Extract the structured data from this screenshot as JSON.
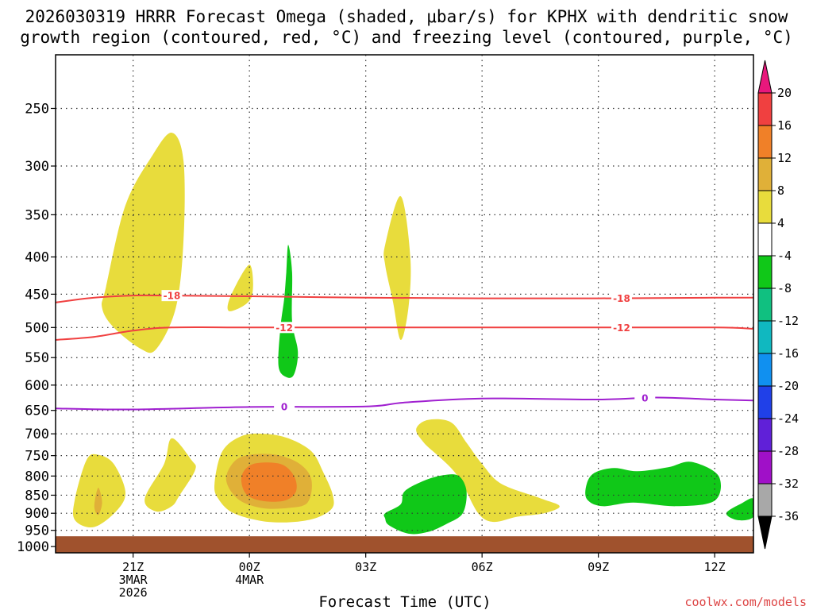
{
  "chart_data": {
    "type": "time-height",
    "title_line1": "2026030319 HRRR Forecast Omega (shaded, μbar/s) for KPHX with dendritic snow",
    "title_line2": "growth region (contoured, red, °C) and freezing level (contoured, purple, °C)",
    "xlabel": "Forecast Time (UTC)",
    "ylabel": "",
    "x_range_hours": [
      -2,
      16
    ],
    "y_ticks": [
      250,
      300,
      350,
      400,
      450,
      500,
      550,
      600,
      650,
      700,
      750,
      800,
      850,
      900,
      950,
      1000
    ],
    "x_ticks": [
      {
        "hour": 0,
        "lines": [
          "21Z",
          "3MAR",
          "2026"
        ]
      },
      {
        "hour": 3,
        "lines": [
          "00Z",
          "4MAR"
        ]
      },
      {
        "hour": 6,
        "lines": [
          "03Z"
        ]
      },
      {
        "hour": 9,
        "lines": [
          "06Z"
        ]
      },
      {
        "hour": 12,
        "lines": [
          "09Z"
        ]
      },
      {
        "hour": 15,
        "lines": [
          "12Z"
        ]
      }
    ],
    "colorbar": {
      "bands": [
        {
          "color": "#e8187c",
          "label": "20"
        },
        {
          "color": "#f04040",
          "label": "16"
        },
        {
          "color": "#f08028",
          "label": "12"
        },
        {
          "color": "#e0b038",
          "label": "8"
        },
        {
          "color": "#e8dc3c",
          "label": "4"
        },
        {
          "color": "#ffffff",
          "label": "-4"
        },
        {
          "color": "#10c818",
          "label": "-8"
        },
        {
          "color": "#10c080",
          "label": "-12"
        },
        {
          "color": "#10b8c0",
          "label": "-16"
        },
        {
          "color": "#1090f0",
          "label": "-20"
        },
        {
          "color": "#2040e8",
          "label": "-24"
        },
        {
          "color": "#6020d8",
          "label": "-28"
        },
        {
          "color": "#a010c8",
          "label": "-32"
        },
        {
          "color": "#a8a8a8",
          "label": "-36"
        },
        {
          "color": "#000000",
          "label": ""
        }
      ]
    },
    "contours": [
      {
        "name": "dgz-minus18",
        "level": "-18",
        "color": "#f04040",
        "label_positions_hours": [
          1,
          12.6
        ],
        "points": [
          [
            -2,
            462
          ],
          [
            -1,
            455
          ],
          [
            0,
            452
          ],
          [
            1,
            452
          ],
          [
            3,
            453
          ],
          [
            6,
            455
          ],
          [
            9,
            456
          ],
          [
            12,
            456
          ],
          [
            15,
            455
          ],
          [
            16,
            455
          ]
        ]
      },
      {
        "name": "dgz-minus12",
        "level": "-12",
        "color": "#f04040",
        "label_positions_hours": [
          3.9,
          12.6
        ],
        "points": [
          [
            -2,
            520
          ],
          [
            -1,
            515
          ],
          [
            0,
            505
          ],
          [
            1,
            500
          ],
          [
            3,
            500
          ],
          [
            6,
            500
          ],
          [
            9,
            500
          ],
          [
            12,
            500
          ],
          [
            15,
            500
          ],
          [
            16,
            502
          ]
        ]
      },
      {
        "name": "freezing-level",
        "level": "0",
        "color": "#a020d0",
        "label_positions_hours": [
          3.9,
          13.2
        ],
        "points": [
          [
            -2,
            646
          ],
          [
            0,
            648
          ],
          [
            3,
            643
          ],
          [
            6,
            642
          ],
          [
            7,
            634
          ],
          [
            9,
            626
          ],
          [
            12,
            628
          ],
          [
            13.5,
            624
          ],
          [
            15,
            628
          ],
          [
            16,
            630
          ]
        ]
      }
    ],
    "omega_regions": [
      {
        "name": "upper-yellow-blob",
        "band": "4 to 8",
        "color": "#e8dc3c",
        "points": [
          [
            -0.7,
            440
          ],
          [
            -0.2,
            340
          ],
          [
            0.5,
            290
          ],
          [
            1,
            270
          ],
          [
            1.3,
            295
          ],
          [
            1.3,
            380
          ],
          [
            1.1,
            470
          ],
          [
            0.6,
            535
          ],
          [
            0.2,
            535
          ],
          [
            -0.5,
            500
          ],
          [
            -0.8,
            470
          ]
        ]
      },
      {
        "name": "small-yellow-blob-upper",
        "band": "4 to 8",
        "color": "#e8dc3c",
        "points": [
          [
            2.5,
            455
          ],
          [
            3,
            410
          ],
          [
            3.05,
            455
          ],
          [
            2.5,
            475
          ]
        ]
      },
      {
        "name": "narrow-yellow-blob-03z",
        "band": "4 to 8",
        "color": "#e8dc3c",
        "points": [
          [
            6.5,
            385
          ],
          [
            6.9,
            330
          ],
          [
            7.15,
            400
          ],
          [
            7.1,
            470
          ],
          [
            6.9,
            520
          ],
          [
            6.7,
            460
          ],
          [
            6.5,
            410
          ]
        ]
      },
      {
        "name": "green-column-00z",
        "band": "-4 to -8",
        "color": "#10c818",
        "points": [
          [
            3.95,
            420
          ],
          [
            4,
            385
          ],
          [
            4.1,
            420
          ],
          [
            4.1,
            490
          ],
          [
            4.25,
            540
          ],
          [
            4.15,
            580
          ],
          [
            3.95,
            585
          ],
          [
            3.75,
            565
          ],
          [
            3.8,
            500
          ],
          [
            3.9,
            455
          ]
        ]
      },
      {
        "name": "low-yellow-blob-left",
        "band": "4 to 8",
        "color": "#e8dc3c",
        "points": [
          [
            -1.5,
            860
          ],
          [
            -1.2,
            760
          ],
          [
            -0.9,
            748
          ],
          [
            -0.5,
            770
          ],
          [
            -0.2,
            840
          ],
          [
            -0.4,
            890
          ],
          [
            -1,
            940
          ],
          [
            -1.5,
            920
          ]
        ]
      },
      {
        "name": "low-orange-spot-left",
        "band": "8 to 12",
        "color": "#e0b038",
        "points": [
          [
            -1,
            880
          ],
          [
            -0.9,
            830
          ],
          [
            -0.8,
            870
          ],
          [
            -0.9,
            905
          ]
        ]
      },
      {
        "name": "low-yellow-blob-21z",
        "band": "4 to 8",
        "color": "#e8dc3c",
        "points": [
          [
            0.3,
            860
          ],
          [
            0.8,
            770
          ],
          [
            1,
            710
          ],
          [
            1.5,
            760
          ],
          [
            1.6,
            785
          ],
          [
            1.2,
            850
          ],
          [
            1,
            880
          ],
          [
            0.6,
            895
          ]
        ]
      },
      {
        "name": "low-yellow-blob-00z",
        "band": "4 to 8",
        "color": "#e8dc3c",
        "points": [
          [
            2.1,
            820
          ],
          [
            2.3,
            740
          ],
          [
            2.8,
            705
          ],
          [
            3.4,
            700
          ],
          [
            4,
            710
          ],
          [
            4.6,
            740
          ],
          [
            4.9,
            790
          ],
          [
            5.15,
            850
          ],
          [
            5.1,
            890
          ],
          [
            4.5,
            920
          ],
          [
            3.5,
            925
          ],
          [
            2.6,
            900
          ],
          [
            2.2,
            860
          ]
        ]
      },
      {
        "name": "low-orange-blob-00z",
        "band": "8 to 12",
        "color": "#e0b038",
        "points": [
          [
            2.4,
            810
          ],
          [
            2.6,
            765
          ],
          [
            3,
            748
          ],
          [
            3.7,
            748
          ],
          [
            4.3,
            770
          ],
          [
            4.6,
            810
          ],
          [
            4.5,
            870
          ],
          [
            4,
            885
          ],
          [
            3.3,
            885
          ],
          [
            2.7,
            860
          ]
        ]
      },
      {
        "name": "low-darkorange-core-00z",
        "band": "12 to 16",
        "color": "#f08028",
        "points": [
          [
            2.8,
            800
          ],
          [
            3.1,
            770
          ],
          [
            3.8,
            770
          ],
          [
            4.15,
            800
          ],
          [
            4.2,
            840
          ],
          [
            3.9,
            865
          ],
          [
            3.3,
            865
          ],
          [
            2.9,
            845
          ]
        ]
      },
      {
        "name": "low-yellow-blob-04z",
        "band": "4 to 8",
        "color": "#e8dc3c",
        "points": [
          [
            7.3,
            690
          ],
          [
            7.6,
            670
          ],
          [
            8.2,
            675
          ],
          [
            8.6,
            720
          ],
          [
            9,
            770
          ],
          [
            9.5,
            820
          ],
          [
            10.5,
            858
          ],
          [
            11,
            880
          ],
          [
            10.6,
            900
          ],
          [
            9.9,
            910
          ],
          [
            9.3,
            925
          ],
          [
            8.9,
            900
          ],
          [
            8.5,
            820
          ],
          [
            8.2,
            780
          ],
          [
            7.8,
            745
          ],
          [
            7.5,
            720
          ]
        ]
      },
      {
        "name": "low-green-blob-04z",
        "band": "-4 to -8",
        "color": "#10c818",
        "points": [
          [
            6.5,
            900
          ],
          [
            6.9,
            875
          ],
          [
            7,
            840
          ],
          [
            7.5,
            812
          ],
          [
            8,
            798
          ],
          [
            8.4,
            800
          ],
          [
            8.6,
            840
          ],
          [
            8.5,
            900
          ],
          [
            8.1,
            930
          ],
          [
            7.6,
            955
          ],
          [
            7.1,
            960
          ],
          [
            6.6,
            935
          ],
          [
            6.5,
            915
          ]
        ]
      },
      {
        "name": "low-green-blob-09z",
        "band": "-4 to -8",
        "color": "#10c818",
        "points": [
          [
            11.7,
            820
          ],
          [
            11.9,
            792
          ],
          [
            12.4,
            780
          ],
          [
            13,
            788
          ],
          [
            13.8,
            778
          ],
          [
            14.4,
            765
          ],
          [
            15.1,
            800
          ],
          [
            15,
            865
          ],
          [
            14,
            880
          ],
          [
            12.9,
            870
          ],
          [
            12.1,
            880
          ],
          [
            11.7,
            860
          ]
        ]
      },
      {
        "name": "low-green-blob-edge",
        "band": "-4 to -8",
        "color": "#10c818",
        "points": [
          [
            15.3,
            900
          ],
          [
            15.7,
            872
          ],
          [
            16,
            860
          ],
          [
            16,
            910
          ],
          [
            15.6,
            920
          ]
        ]
      }
    ],
    "ground": {
      "from_hpa": 968,
      "to_hpa": 1030,
      "color": "#a0522d"
    }
  },
  "credit": "coolwx.com/models"
}
